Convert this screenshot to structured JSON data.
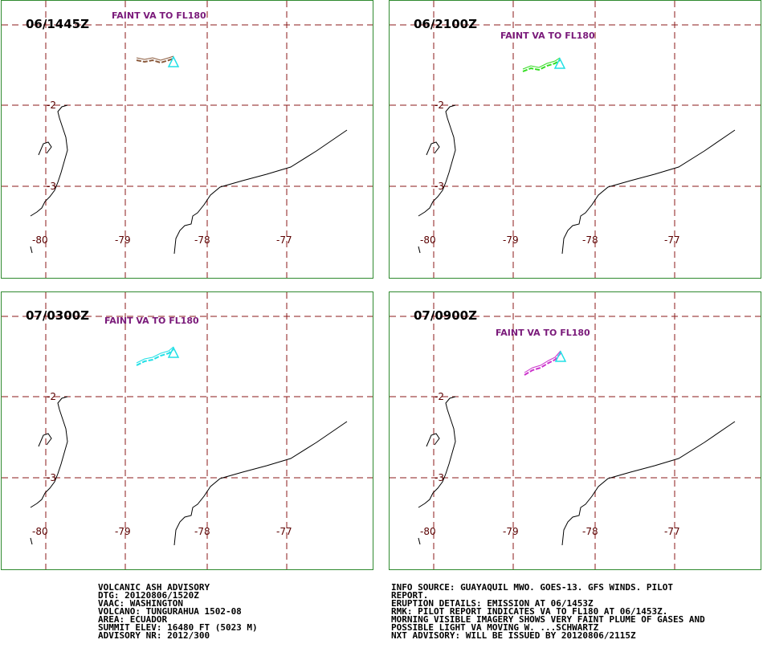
{
  "panels": [
    {
      "time": "06/1445Z",
      "label": "FAINT VA TO FL180",
      "plume_color": "#8b5a3c"
    },
    {
      "time": "06/2100Z",
      "label": "FAINT VA TO FL180",
      "plume_color": "#33dd22"
    },
    {
      "time": "07/0300Z",
      "label": "FAINT VA TO FL180",
      "plume_color": "#22e0e6"
    },
    {
      "time": "07/0900Z",
      "label": "FAINT VA TO FL180",
      "plume_color": "#cc33cc"
    }
  ],
  "axis": {
    "lat_labels": [
      "-2",
      "-3"
    ],
    "lon_labels": [
      "-80",
      "-79",
      "-78",
      "-77"
    ],
    "grid_color": "#8b1a1a",
    "vent_color": "#22e0e6"
  },
  "advisory_left": [
    "VOLCANIC ASH ADVISORY",
    "DTG: 20120806/1520Z",
    "VAAC: WASHINGTON",
    "VOLCANO: TUNGURAHUA 1502-08",
    "AREA: ECUADOR",
    "SUMMIT ELEV: 16480 FT (5023 M)",
    "ADVISORY NR: 2012/300"
  ],
  "advisory_right": [
    "INFO SOURCE: GUAYAQUIL MWO. GOES-13. GFS WINDS. PILOT",
    "REPORT.",
    "ERUPTION DETAILS: EMISSION AT 06/1453Z",
    "RMK: PILOT REPORT INDICATES VA TO FL180 AT 06/1453Z.",
    "MORNING VISIBLE IMAGERY SHOWS VERY FAINT PLUME OF GASES AND",
    "POSSIBLE LIGHT VA MOVING W. ...SCHWARTZ",
    "NXT ADVISORY: WILL BE ISSUED BY 20120806/2115Z"
  ]
}
